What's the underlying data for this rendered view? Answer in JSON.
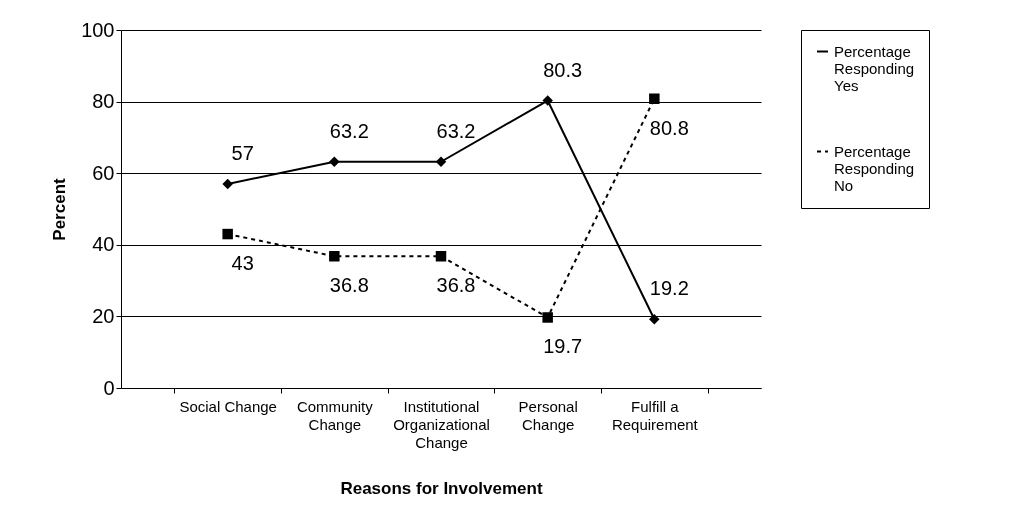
{
  "chart_data": {
    "type": "line",
    "xlabel": "Reasons for Involvement",
    "ylabel": "Percent",
    "categories": [
      "Social Change",
      "Community Change",
      "Institutional Organizational Change",
      "Personal Change",
      "Fulfill a Requirement"
    ],
    "series": [
      {
        "name": "Percentage Responding Yes",
        "color": "#000000",
        "marker": "diamond",
        "line_style": "solid",
        "values": [
          57,
          63.2,
          63.2,
          80.3,
          19.2
        ]
      },
      {
        "name": "Percentage Responding No",
        "color": "#000000",
        "marker": "square",
        "line_style": "dashed",
        "values": [
          43,
          36.8,
          36.8,
          19.7,
          80.8
        ]
      }
    ],
    "ylim": [
      0,
      100
    ],
    "yticks": [
      0,
      20,
      40,
      60,
      80,
      100
    ],
    "grid": "y",
    "legend": "right",
    "data_labels": true
  }
}
